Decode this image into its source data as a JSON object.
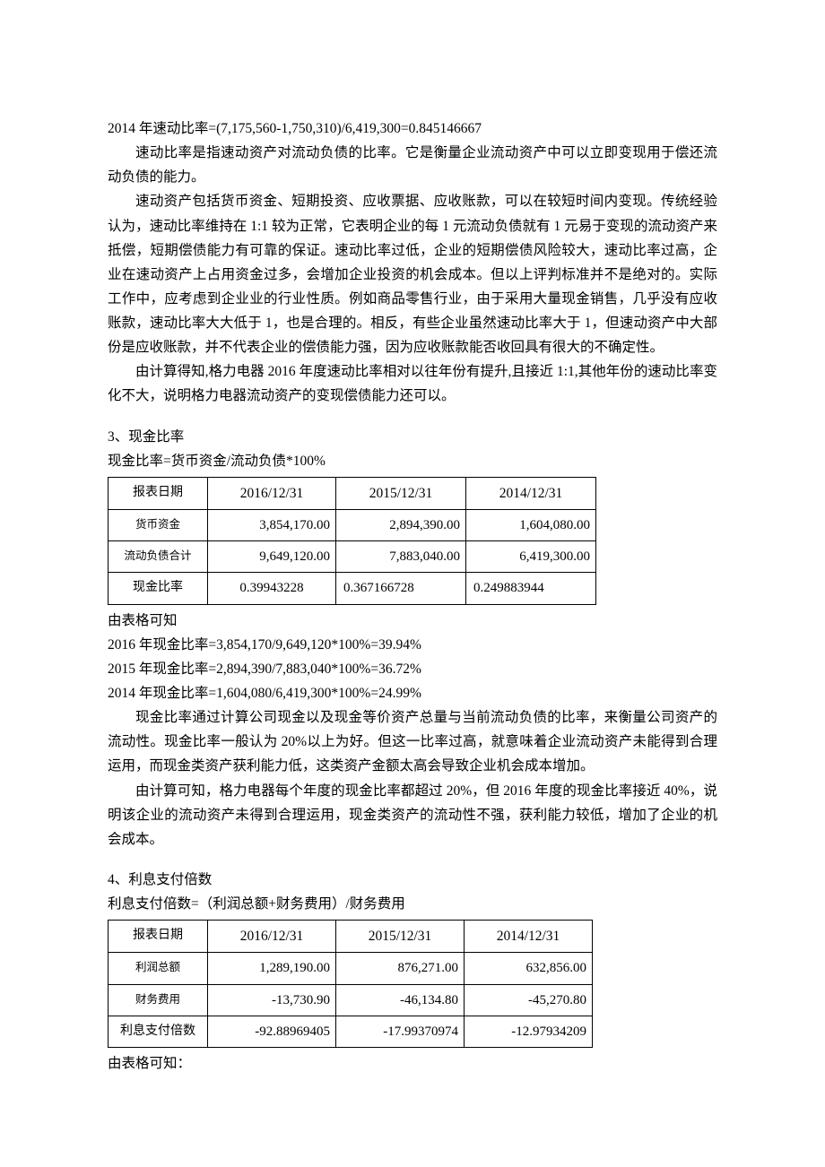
{
  "line1": "2014 年速动比率=(7,175,560-1,750,310)/6,419,300=0.845146667",
  "para1": "速动比率是指速动资产对流动负债的比率。它是衡量企业流动资产中可以立即变现用于偿还流动负债的能力。",
  "para2": "速动资产包括货币资金、短期投资、应收票据、应收账款，可以在较短时间内变现。传统经验认为，速动比率维持在 1:1 较为正常，它表明企业的每 1 元流动负债就有 1 元易于变现的流动资产来抵偿，短期偿债能力有可靠的保证。速动比率过低，企业的短期偿债风险较大，速动比率过高，企业在速动资产上占用资金过多，会增加企业投资的机会成本。但以上评判标准并不是绝对的。实际工作中，应考虑到企业业的行业性质。例如商品零售行业，由于采用大量现金销售，几乎没有应收账款，速动比率大大低于 1，也是合理的。相反，有些企业虽然速动比率大于 1，但速动资产中大部份是应收账款，并不代表企业的偿债能力强，因为应收账款能否收回具有很大的不确定性。",
  "para3": "由计算得知,格力电器 2016 年度速动比率相对以往年份有提升,且接近 1:1,其他年份的速动比率变化不大，说明格力电器流动资产的变现偿债能力还可以。",
  "sec3_title": "3、现金比率",
  "sec3_formula": "现金比率=货币资金/流动负债*100%",
  "table1": {
    "header_label": "报表日期",
    "headers": [
      "2016/12/31",
      "2015/12/31",
      "2014/12/31"
    ],
    "rows": [
      {
        "label": "货币资金",
        "cells": [
          "3,854,170.00",
          "2,894,390.00",
          "1,604,080.00"
        ]
      },
      {
        "label": "流动负债合计",
        "cells": [
          "9,649,120.00",
          "7,883,040.00",
          "6,419,300.00"
        ]
      },
      {
        "label": "现金比率",
        "cells": [
          "0.39943228",
          "0.367166728",
          "0.249883944"
        ]
      }
    ]
  },
  "after_t1_line1": "由表格可知",
  "after_t1_line2": "2016 年现金比率=3,854,170/9,649,120*100%=39.94%",
  "after_t1_line3": "2015 年现金比率=2,894,390/7,883,040*100%=36.72%",
  "after_t1_line4": "2014 年现金比率=1,604,080/6,419,300*100%=24.99%",
  "para4": "现金比率通过计算公司现金以及现金等价资产总量与当前流动负债的比率，来衡量公司资产的流动性。现金比率一般认为 20%以上为好。但这一比率过高，就意味着企业流动资产未能得到合理运用，而现金类资产获利能力低，这类资产金额太高会导致企业机会成本增加。",
  "para5": "由计算可知，格力电器每个年度的现金比率都超过 20%，但 2016 年度的现金比率接近 40%，说明该企业的流动资产未得到合理运用，现金类资产的流动性不强，获利能力较低，增加了企业的机会成本。",
  "sec4_title": "4、利息支付倍数",
  "sec4_formula": "利息支付倍数=（利润总额+财务费用）/财务费用",
  "table2": {
    "header_label": "报表日期",
    "headers": [
      "2016/12/31",
      "2015/12/31",
      "2014/12/31"
    ],
    "rows": [
      {
        "label": "利润总额",
        "cells": [
          "1,289,190.00",
          "876,271.00",
          "632,856.00"
        ]
      },
      {
        "label": "财务费用",
        "cells": [
          "-13,730.90",
          "-46,134.80",
          "-45,270.80"
        ]
      },
      {
        "label": "利息支付倍数",
        "cells": [
          "-92.88969405",
          "-17.99370974",
          "-12.97934209"
        ]
      }
    ]
  },
  "after_t2_line1": "由表格可知："
}
